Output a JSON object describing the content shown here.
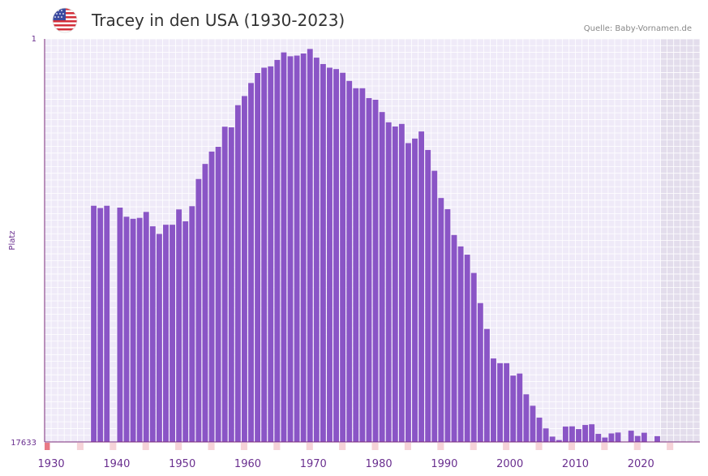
{
  "header": {
    "title": "Tracey in den USA (1930-2023)",
    "source": "Quelle: Baby-Vornamen.de",
    "flag_icon": "usa-flag-icon"
  },
  "colors": {
    "bar": "#8a55c6",
    "grid_bg": "#efeaf8",
    "future_bg": "#e3ddec",
    "axis": "#7a2a7a",
    "tick_label": "#6a2f8f",
    "marker_major": "#e87a86",
    "marker_minor": "#f6d3d8"
  },
  "chart_data": {
    "type": "bar",
    "title": "Tracey in den USA (1930-2023)",
    "ylabel": "Platz",
    "xlabel": "",
    "y_axis_inverted": true,
    "ylim": [
      1,
      17633
    ],
    "y_tick_labels": [
      "1",
      "17633"
    ],
    "x_tick_labels": [
      "1930",
      "1940",
      "1950",
      "1960",
      "1970",
      "1980",
      "1990",
      "2000",
      "2010",
      "2020"
    ],
    "x_range": [
      1929,
      2028
    ],
    "future_from": 2023,
    "years": [
      1936,
      1937,
      1938,
      1940,
      1941,
      1942,
      1943,
      1944,
      1945,
      1946,
      1947,
      1948,
      1949,
      1950,
      1951,
      1952,
      1953,
      1954,
      1955,
      1956,
      1957,
      1958,
      1959,
      1960,
      1961,
      1962,
      1963,
      1964,
      1965,
      1966,
      1967,
      1968,
      1969,
      1970,
      1971,
      1972,
      1973,
      1974,
      1975,
      1976,
      1977,
      1978,
      1979,
      1980,
      1981,
      1982,
      1983,
      1984,
      1985,
      1986,
      1987,
      1988,
      1989,
      1990,
      1991,
      1992,
      1993,
      1994,
      1995,
      1996,
      1997,
      1998,
      1999,
      2000,
      2001,
      2002,
      2003,
      2004,
      2005,
      2006,
      2007,
      2008,
      2009,
      2010,
      2011,
      2012,
      2013,
      2014,
      2015,
      2016,
      2017,
      2018,
      2019,
      2020,
      2021,
      2022
    ],
    "ranks": [
      7300,
      7400,
      7300,
      7380,
      7780,
      7870,
      7830,
      7570,
      8200,
      8530,
      8130,
      8130,
      7460,
      7980,
      7320,
      6130,
      5470,
      4930,
      4720,
      3840,
      3870,
      2900,
      2500,
      1930,
      1490,
      1260,
      1200,
      920,
      590,
      760,
      730,
      640,
      440,
      820,
      1100,
      1260,
      1320,
      1480,
      1840,
      2160,
      2160,
      2590,
      2660,
      3200,
      3650,
      3830,
      3720,
      4560,
      4360,
      4050,
      4860,
      5770,
      6960,
      7450,
      8580,
      9080,
      9440,
      10240,
      11560,
      12690,
      13980,
      14190,
      14190,
      14730,
      14640,
      15550,
      16050,
      16570,
      17040,
      17400,
      17550,
      16960,
      16950,
      17070,
      16890,
      16860,
      17280,
      17440,
      17260,
      17220,
      17630,
      17140,
      17370,
      17230,
      17650,
      17380
    ]
  }
}
